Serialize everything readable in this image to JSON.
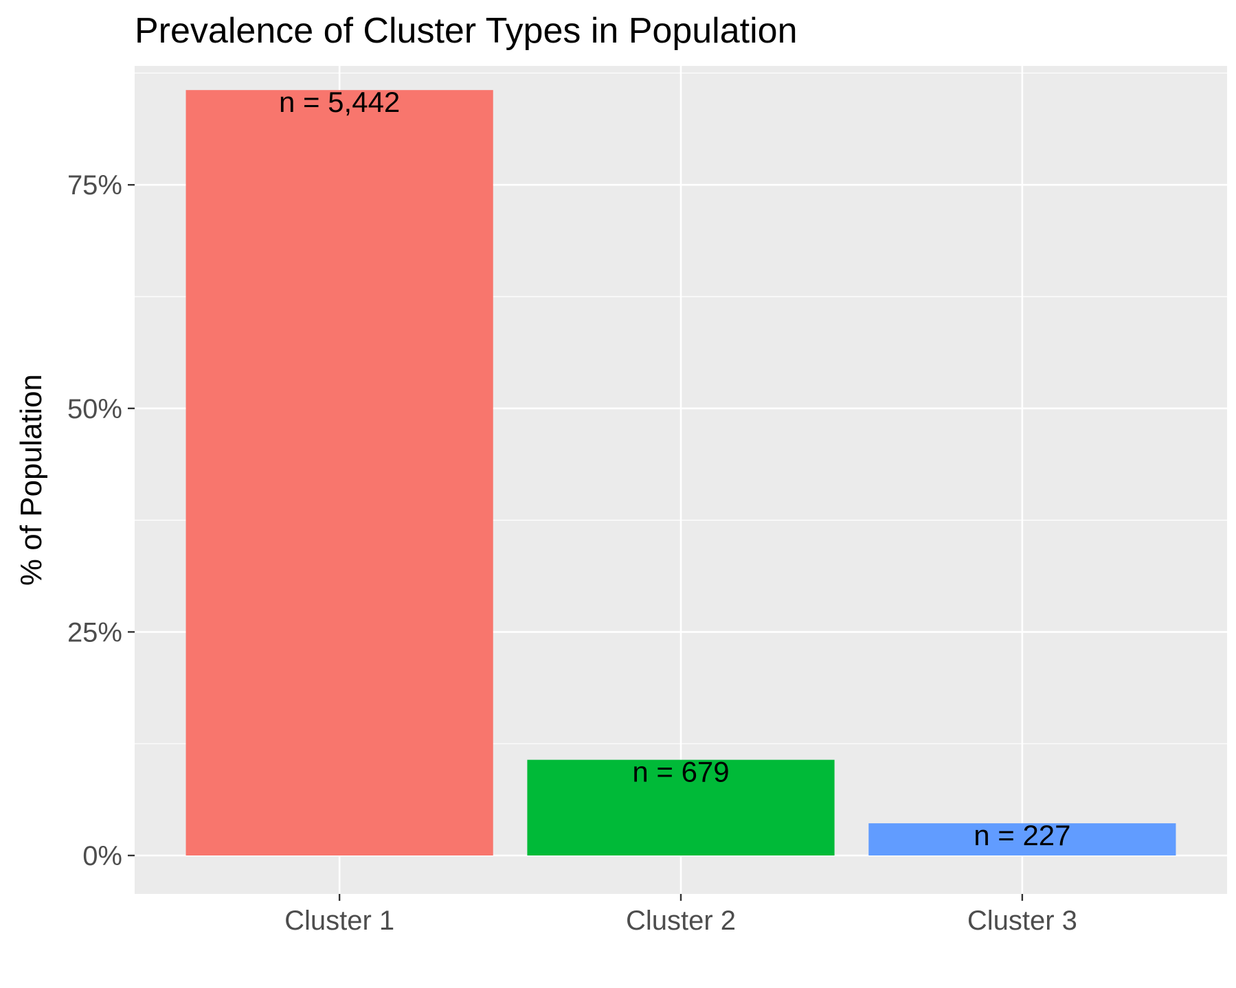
{
  "chart_data": {
    "type": "bar",
    "title": "Prevalence of Cluster Types in Population",
    "xlabel": "",
    "ylabel": "% of Population",
    "categories": [
      "Cluster 1",
      "Cluster 2",
      "Cluster 3"
    ],
    "values": [
      85.6,
      10.7,
      3.6
    ],
    "data_labels": [
      "n = 5,442",
      "n = 679",
      "n = 227"
    ],
    "colors": [
      "#F8766D",
      "#00BA38",
      "#619CFF"
    ],
    "ylim": [
      -4.3,
      88.3
    ],
    "yticks": [
      0,
      25,
      50,
      75
    ],
    "ytick_labels": [
      "0%",
      "25%",
      "50%",
      "75%"
    ],
    "panel_background": "#EBEBEB",
    "grid": true,
    "legend": "none"
  }
}
